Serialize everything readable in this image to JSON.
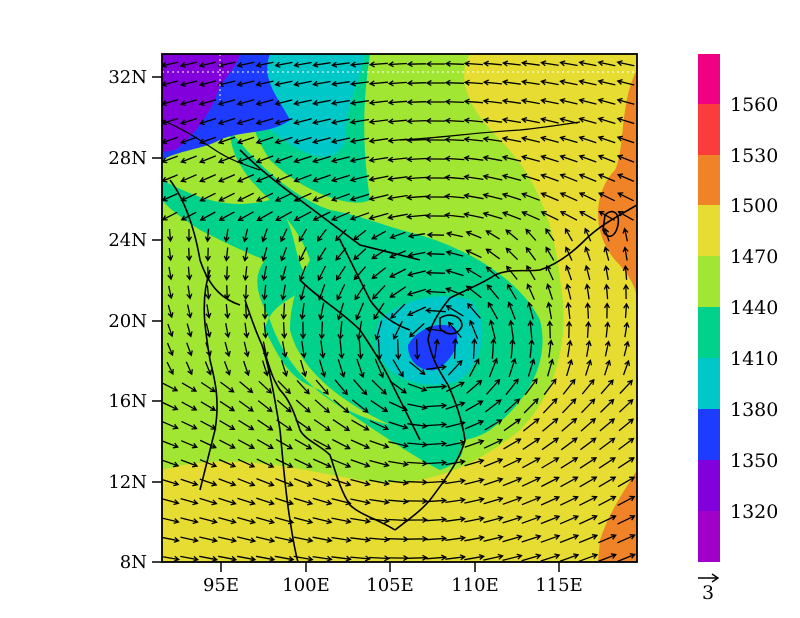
{
  "map": {
    "lat_labels": [
      "32N",
      "28N",
      "24N",
      "20N",
      "16N",
      "12N",
      "8N"
    ],
    "lon_labels": [
      "95E",
      "100E",
      "105E",
      "110E",
      "115E"
    ],
    "lon_range": [
      91.5,
      119.5
    ],
    "lat_range": [
      8,
      33
    ],
    "field_min_center": {
      "lon": 107.5,
      "lat": 18.5
    },
    "wind_field": "cyclonic circulation centered near 107.5E, 18.5N; westerlies south of 16N; easterlies over 24N-30N"
  },
  "colorbar": {
    "levels": [
      1320,
      1350,
      1380,
      1410,
      1440,
      1470,
      1500,
      1530,
      1560
    ],
    "colors": [
      "#a000c8",
      "#8200dc",
      "#1e3cff",
      "#00c8c8",
      "#00d28c",
      "#a0e632",
      "#e6dc32",
      "#f08228",
      "#fa3c3c",
      "#f00082"
    ]
  },
  "vector_reference": {
    "label": "3"
  }
}
